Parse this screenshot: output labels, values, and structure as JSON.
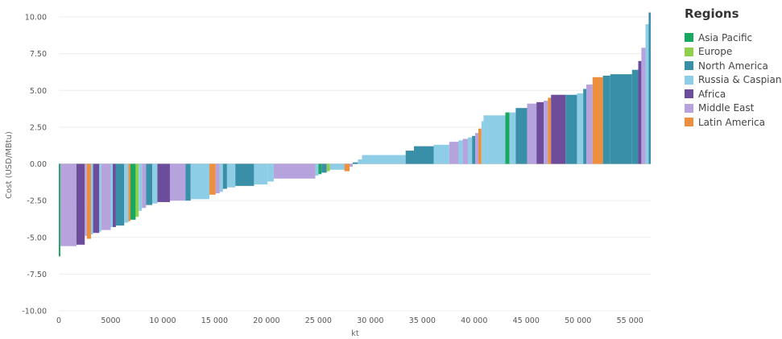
{
  "chart_data": {
    "type": "bar",
    "title": "",
    "xlabel": "kt",
    "ylabel": "Cost (USD/MBtu)",
    "xlim": [
      0,
      57000
    ],
    "ylim": [
      -10,
      10
    ],
    "x_ticks": [
      0,
      5000,
      10000,
      15000,
      20000,
      25000,
      30000,
      35000,
      40000,
      45000,
      50000,
      55000
    ],
    "x_tick_labels": [
      "0",
      "5000",
      "10 000",
      "15 000",
      "20 000",
      "25 000",
      "30 000",
      "35 000",
      "40 000",
      "45 000",
      "50 000",
      "55 000"
    ],
    "y_ticks": [
      -10,
      -7.5,
      -5,
      -2.5,
      0,
      2.5,
      5,
      7.5,
      10
    ],
    "y_tick_labels": [
      "-10.00",
      "-7.50",
      "-5.00",
      "-2.50",
      "0.00",
      "2.50",
      "5.00",
      "7.50",
      "10.00"
    ],
    "grid": true,
    "legend_title": "Regions",
    "legend_position": "right",
    "legend": [
      {
        "name": "Asia Pacific",
        "color": "#1aa860"
      },
      {
        "name": "Europe",
        "color": "#8fd14f"
      },
      {
        "name": "North America",
        "color": "#3a8fa8"
      },
      {
        "name": "Russia & Caspian",
        "color": "#8ecde6"
      },
      {
        "name": "Africa",
        "color": "#6e4c9c"
      },
      {
        "name": "Middle East",
        "color": "#b6a2dc"
      },
      {
        "name": "Latin America",
        "color": "#ec8f3e"
      }
    ],
    "bars": [
      {
        "x0": 0,
        "x1": 150,
        "y": -6.3,
        "region": "Asia Pacific"
      },
      {
        "x0": 150,
        "x1": 1700,
        "y": -5.6,
        "region": "Middle East"
      },
      {
        "x0": 1700,
        "x1": 2500,
        "y": -5.5,
        "region": "Africa"
      },
      {
        "x0": 2500,
        "x1": 2700,
        "y": -4.9,
        "region": "Middle East"
      },
      {
        "x0": 2700,
        "x1": 3100,
        "y": -5.1,
        "region": "Latin America"
      },
      {
        "x0": 3100,
        "x1": 3300,
        "y": -4.8,
        "region": "Russia & Caspian"
      },
      {
        "x0": 3300,
        "x1": 3900,
        "y": -4.7,
        "region": "Africa"
      },
      {
        "x0": 3900,
        "x1": 4100,
        "y": -4.6,
        "region": "Russia & Caspian"
      },
      {
        "x0": 4100,
        "x1": 5000,
        "y": -4.5,
        "region": "Middle East"
      },
      {
        "x0": 5000,
        "x1": 5200,
        "y": -4.3,
        "region": "Russia & Caspian"
      },
      {
        "x0": 5200,
        "x1": 5500,
        "y": -4.3,
        "region": "Africa"
      },
      {
        "x0": 5500,
        "x1": 6300,
        "y": -4.2,
        "region": "North America"
      },
      {
        "x0": 6300,
        "x1": 6700,
        "y": -4.0,
        "region": "Russia & Caspian"
      },
      {
        "x0": 6700,
        "x1": 6900,
        "y": -3.9,
        "region": "Latin America"
      },
      {
        "x0": 6900,
        "x1": 7400,
        "y": -3.8,
        "region": "Asia Pacific"
      },
      {
        "x0": 7400,
        "x1": 7700,
        "y": -3.6,
        "region": "Europe"
      },
      {
        "x0": 7700,
        "x1": 8000,
        "y": -3.2,
        "region": "Russia & Caspian"
      },
      {
        "x0": 8000,
        "x1": 8400,
        "y": -3.0,
        "region": "Middle East"
      },
      {
        "x0": 8400,
        "x1": 9000,
        "y": -2.8,
        "region": "North America"
      },
      {
        "x0": 9000,
        "x1": 9500,
        "y": -2.7,
        "region": "Russia & Caspian"
      },
      {
        "x0": 9500,
        "x1": 10700,
        "y": -2.6,
        "region": "Africa"
      },
      {
        "x0": 10700,
        "x1": 12200,
        "y": -2.5,
        "region": "Middle East"
      },
      {
        "x0": 12200,
        "x1": 12700,
        "y": -2.5,
        "region": "North America"
      },
      {
        "x0": 12700,
        "x1": 14500,
        "y": -2.4,
        "region": "Russia & Caspian"
      },
      {
        "x0": 14500,
        "x1": 15100,
        "y": -2.1,
        "region": "Latin America"
      },
      {
        "x0": 15100,
        "x1": 15500,
        "y": -2.0,
        "region": "Middle East"
      },
      {
        "x0": 15500,
        "x1": 15800,
        "y": -1.9,
        "region": "Russia & Caspian"
      },
      {
        "x0": 15800,
        "x1": 16200,
        "y": -1.7,
        "region": "North America"
      },
      {
        "x0": 16200,
        "x1": 17000,
        "y": -1.6,
        "region": "Russia & Caspian"
      },
      {
        "x0": 17000,
        "x1": 18800,
        "y": -1.5,
        "region": "North America"
      },
      {
        "x0": 18800,
        "x1": 20100,
        "y": -1.4,
        "region": "Russia & Caspian"
      },
      {
        "x0": 20100,
        "x1": 20700,
        "y": -1.2,
        "region": "Russia & Caspian"
      },
      {
        "x0": 20700,
        "x1": 24700,
        "y": -1.0,
        "region": "Middle East"
      },
      {
        "x0": 24700,
        "x1": 25000,
        "y": -0.8,
        "region": "Russia & Caspian"
      },
      {
        "x0": 25000,
        "x1": 25300,
        "y": -0.7,
        "region": "Asia Pacific"
      },
      {
        "x0": 25300,
        "x1": 25800,
        "y": -0.6,
        "region": "North America"
      },
      {
        "x0": 25800,
        "x1": 26100,
        "y": -0.5,
        "region": "Europe"
      },
      {
        "x0": 26100,
        "x1": 27500,
        "y": -0.4,
        "region": "Russia & Caspian"
      },
      {
        "x0": 27500,
        "x1": 28000,
        "y": -0.5,
        "region": "Latin America"
      },
      {
        "x0": 28000,
        "x1": 28300,
        "y": -0.2,
        "region": "Middle East"
      },
      {
        "x0": 28300,
        "x1": 28800,
        "y": 0.1,
        "region": "North America"
      },
      {
        "x0": 28800,
        "x1": 29200,
        "y": 0.3,
        "region": "Russia & Caspian"
      },
      {
        "x0": 29200,
        "x1": 33400,
        "y": 0.6,
        "region": "Russia & Caspian"
      },
      {
        "x0": 33400,
        "x1": 34200,
        "y": 0.9,
        "region": "North America"
      },
      {
        "x0": 34200,
        "x1": 36100,
        "y": 1.2,
        "region": "North America"
      },
      {
        "x0": 36100,
        "x1": 37600,
        "y": 1.3,
        "region": "Russia & Caspian"
      },
      {
        "x0": 37600,
        "x1": 38500,
        "y": 1.5,
        "region": "Middle East"
      },
      {
        "x0": 38500,
        "x1": 38900,
        "y": 1.6,
        "region": "Russia & Caspian"
      },
      {
        "x0": 38900,
        "x1": 39400,
        "y": 1.7,
        "region": "Middle East"
      },
      {
        "x0": 39400,
        "x1": 39800,
        "y": 1.8,
        "region": "Russia & Caspian"
      },
      {
        "x0": 39800,
        "x1": 40100,
        "y": 1.9,
        "region": "North America"
      },
      {
        "x0": 40100,
        "x1": 40400,
        "y": 2.1,
        "region": "Middle East"
      },
      {
        "x0": 40400,
        "x1": 40700,
        "y": 2.4,
        "region": "Latin America"
      },
      {
        "x0": 40700,
        "x1": 40900,
        "y": 2.9,
        "region": "Russia & Caspian"
      },
      {
        "x0": 40900,
        "x1": 43000,
        "y": 3.3,
        "region": "Russia & Caspian"
      },
      {
        "x0": 43000,
        "x1": 43400,
        "y": 3.5,
        "region": "Asia Pacific"
      },
      {
        "x0": 43400,
        "x1": 44000,
        "y": 3.5,
        "region": "Russia & Caspian"
      },
      {
        "x0": 44000,
        "x1": 45100,
        "y": 3.8,
        "region": "North America"
      },
      {
        "x0": 45100,
        "x1": 46000,
        "y": 4.1,
        "region": "Middle East"
      },
      {
        "x0": 46000,
        "x1": 46700,
        "y": 4.2,
        "region": "Africa"
      },
      {
        "x0": 46700,
        "x1": 47100,
        "y": 4.3,
        "region": "Middle East"
      },
      {
        "x0": 47100,
        "x1": 47400,
        "y": 4.5,
        "region": "Latin America"
      },
      {
        "x0": 47400,
        "x1": 48800,
        "y": 4.7,
        "region": "Africa"
      },
      {
        "x0": 48800,
        "x1": 49900,
        "y": 4.7,
        "region": "North America"
      },
      {
        "x0": 49900,
        "x1": 50500,
        "y": 4.8,
        "region": "Russia & Caspian"
      },
      {
        "x0": 50500,
        "x1": 50800,
        "y": 5.1,
        "region": "North America"
      },
      {
        "x0": 50800,
        "x1": 51400,
        "y": 5.4,
        "region": "Middle East"
      },
      {
        "x0": 51400,
        "x1": 52400,
        "y": 5.9,
        "region": "Latin America"
      },
      {
        "x0": 52400,
        "x1": 53100,
        "y": 6.0,
        "region": "North America"
      },
      {
        "x0": 53100,
        "x1": 55200,
        "y": 6.1,
        "region": "North America"
      },
      {
        "x0": 55200,
        "x1": 55800,
        "y": 6.4,
        "region": "North America"
      },
      {
        "x0": 55800,
        "x1": 56100,
        "y": 7.0,
        "region": "Africa"
      },
      {
        "x0": 56100,
        "x1": 56500,
        "y": 7.9,
        "region": "Middle East"
      },
      {
        "x0": 56500,
        "x1": 56800,
        "y": 9.5,
        "region": "Russia & Caspian"
      },
      {
        "x0": 56800,
        "x1": 57000,
        "y": 10.3,
        "region": "North America"
      }
    ]
  }
}
